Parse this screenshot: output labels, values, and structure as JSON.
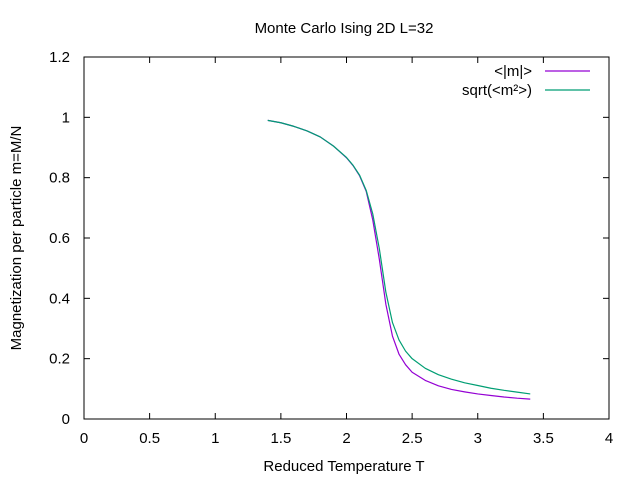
{
  "chart_data": {
    "type": "line",
    "title": "Monte Carlo Ising 2D L=32",
    "xlabel": "Reduced Temperature T",
    "ylabel": "Magnetization per particle m=M/N",
    "xlim": [
      0,
      4
    ],
    "ylim": [
      0,
      1.2
    ],
    "x_ticks": [
      "0",
      "0.5",
      "1",
      "1.5",
      "2",
      "2.5",
      "3",
      "3.5",
      "4"
    ],
    "y_ticks": [
      "0",
      "0.2",
      "0.4",
      "0.6",
      "0.8",
      "1",
      "1.2"
    ],
    "grid": false,
    "legend_position": "top-right",
    "series": [
      {
        "name": "<|m|>",
        "color": "#9400d3",
        "x": [
          1.4,
          1.5,
          1.6,
          1.7,
          1.8,
          1.9,
          2.0,
          2.05,
          2.1,
          2.15,
          2.2,
          2.25,
          2.3,
          2.35,
          2.4,
          2.45,
          2.5,
          2.6,
          2.7,
          2.8,
          2.9,
          3.0,
          3.1,
          3.2,
          3.3,
          3.4
        ],
        "y": [
          0.99,
          0.982,
          0.97,
          0.955,
          0.935,
          0.905,
          0.866,
          0.84,
          0.806,
          0.755,
          0.66,
          0.53,
          0.38,
          0.275,
          0.215,
          0.18,
          0.155,
          0.128,
          0.11,
          0.098,
          0.09,
          0.083,
          0.078,
          0.073,
          0.069,
          0.066
        ]
      },
      {
        "name": "sqrt(<m²>)",
        "color": "#009e73",
        "x": [
          1.4,
          1.5,
          1.6,
          1.7,
          1.8,
          1.9,
          2.0,
          2.05,
          2.1,
          2.15,
          2.2,
          2.25,
          2.3,
          2.35,
          2.4,
          2.45,
          2.5,
          2.6,
          2.7,
          2.8,
          2.9,
          3.0,
          3.1,
          3.2,
          3.3,
          3.4
        ],
        "y": [
          0.99,
          0.982,
          0.97,
          0.955,
          0.935,
          0.905,
          0.867,
          0.841,
          0.808,
          0.758,
          0.68,
          0.565,
          0.42,
          0.32,
          0.262,
          0.225,
          0.2,
          0.168,
          0.147,
          0.132,
          0.12,
          0.111,
          0.102,
          0.095,
          0.089,
          0.083
        ]
      }
    ]
  }
}
